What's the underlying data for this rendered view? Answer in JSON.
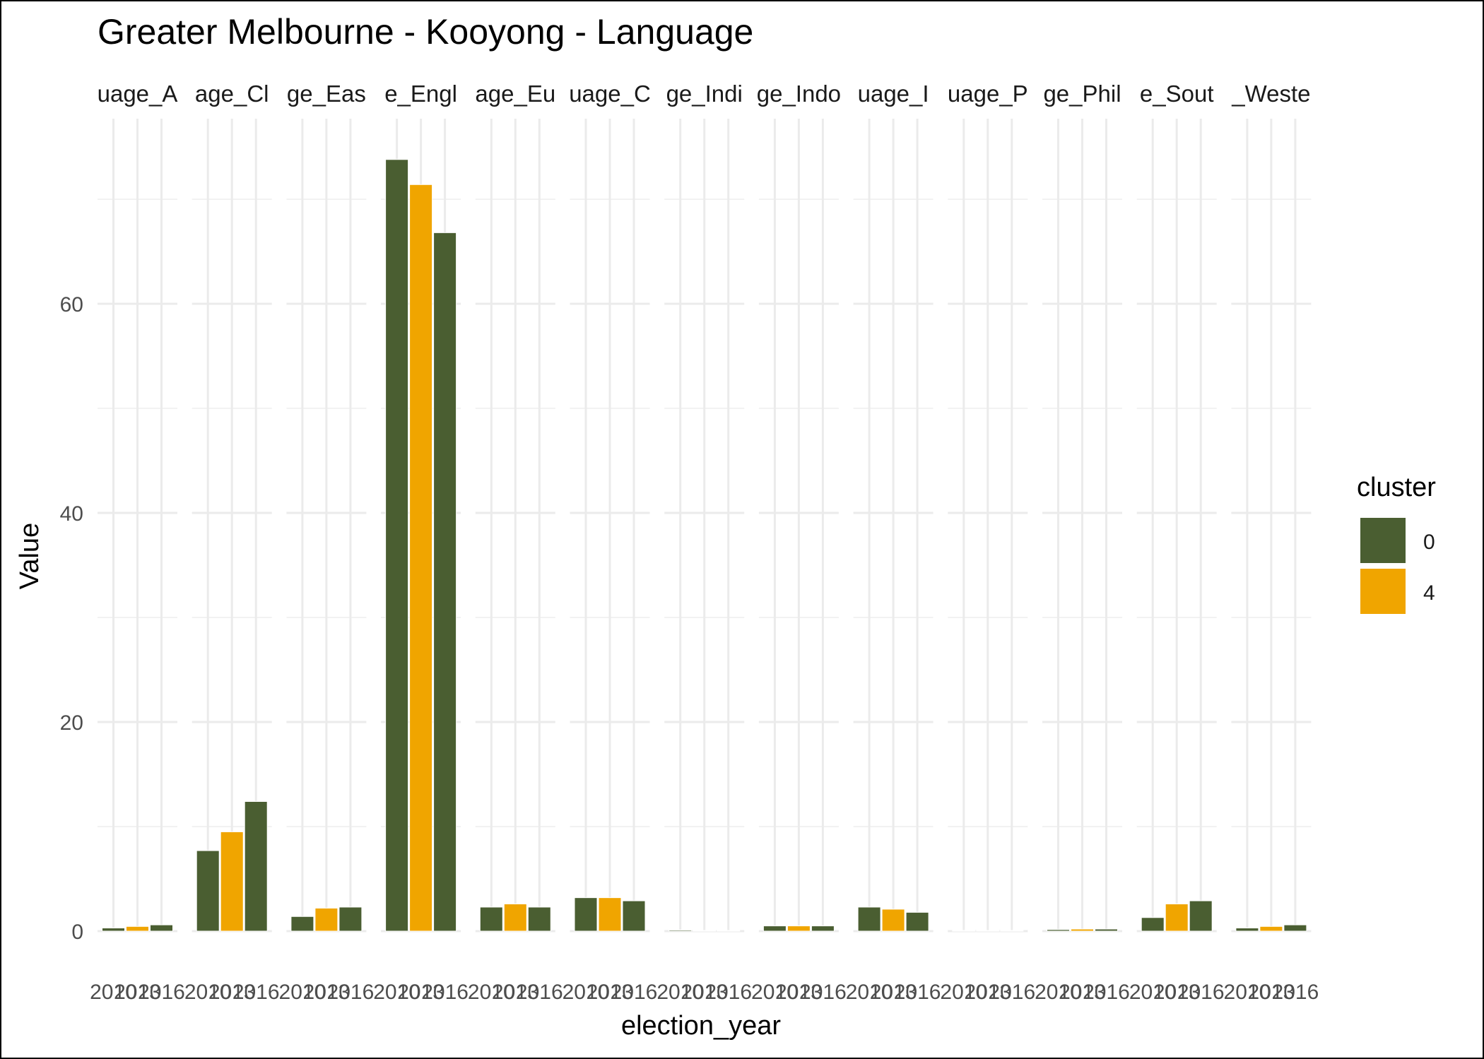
{
  "chart_data": {
    "type": "bar",
    "title": "Greater Melbourne - Kooyong - Language",
    "xlabel": "election_year",
    "ylabel": "Value",
    "yticks": [
      0,
      20,
      40,
      60
    ],
    "ylim": [
      0,
      76
    ],
    "grid": true,
    "x": [
      "2010",
      "2013",
      "2016"
    ],
    "x_tick_labels": [
      "2010",
      "2013",
      "2016"
    ],
    "legend": {
      "title": "cluster",
      "placement": "right",
      "entries": [
        {
          "label": "0",
          "color": "#4a5e31"
        },
        {
          "label": "4",
          "color": "#f0a500"
        }
      ]
    },
    "cluster_colors": {
      "0": "#4a5e31",
      "4": "#f0a500"
    },
    "bar_cluster_by_year": [
      "0",
      "4",
      "0"
    ],
    "panels": [
      {
        "strip_label": "uage_A",
        "values": [
          0.3,
          0.45,
          0.6
        ]
      },
      {
        "strip_label": "age_Cl",
        "values": [
          7.7,
          9.5,
          12.4
        ]
      },
      {
        "strip_label": "ge_Eas",
        "values": [
          1.4,
          2.2,
          2.3
        ]
      },
      {
        "strip_label": "e_Engl",
        "values": [
          73.8,
          71.4,
          66.8
        ]
      },
      {
        "strip_label": "age_Eu",
        "values": [
          2.3,
          2.6,
          2.3
        ]
      },
      {
        "strip_label": "uage_C",
        "values": [
          3.2,
          3.2,
          2.9
        ]
      },
      {
        "strip_label": "ge_Indi",
        "values": [
          0.1,
          0.05,
          0.05
        ]
      },
      {
        "strip_label": "ge_Indo",
        "values": [
          0.5,
          0.5,
          0.5
        ]
      },
      {
        "strip_label": "uage_I",
        "values": [
          2.3,
          2.1,
          1.8
        ]
      },
      {
        "strip_label": "uage_P",
        "values": [
          0.05,
          0.05,
          0.05
        ]
      },
      {
        "strip_label": "ge_Phil",
        "values": [
          0.15,
          0.2,
          0.2
        ]
      },
      {
        "strip_label": "e_Sout",
        "values": [
          1.3,
          2.6,
          2.9
        ]
      },
      {
        "strip_label": "_Weste",
        "values": [
          0.3,
          0.45,
          0.6
        ]
      }
    ]
  }
}
